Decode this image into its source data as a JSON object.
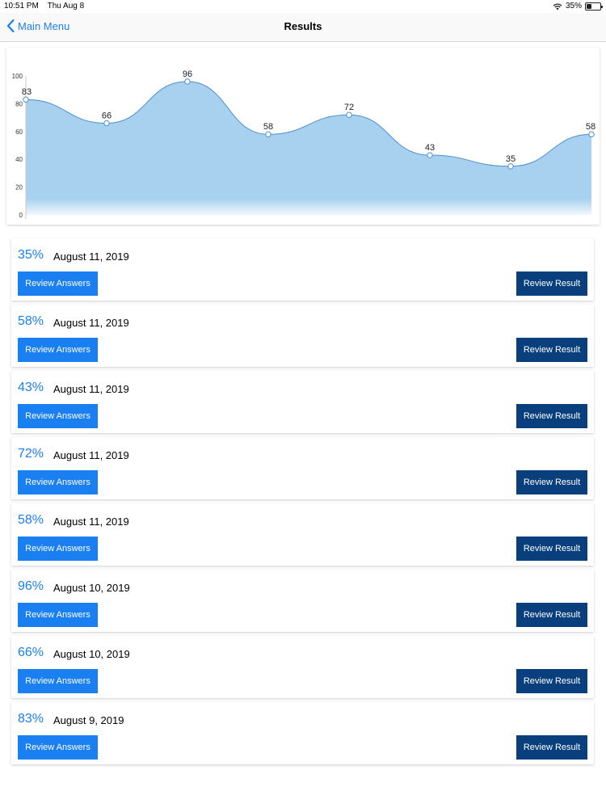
{
  "status": {
    "time": "10:51 PM",
    "date": "Thu Aug 8",
    "battery": "35%",
    "battery_level": 0.35
  },
  "nav": {
    "back_label": "Main Menu",
    "title": "Results"
  },
  "chart_data": {
    "type": "area",
    "title": "",
    "xlabel": "",
    "ylabel": "",
    "ylim": [
      0,
      100
    ],
    "yticks": [
      0,
      20,
      40,
      60,
      80,
      100
    ],
    "values": [
      83,
      66,
      96,
      58,
      72,
      43,
      35,
      58
    ],
    "grid": false,
    "smooth": true,
    "fill_color": "#a8d1ef",
    "line_color": "#4a90d0"
  },
  "colors": {
    "accent": "#1a7ff0",
    "dark_button": "#0a3f7e"
  },
  "results": [
    {
      "score": "35%",
      "date": "August 11, 2019",
      "answers_label": "Review Answers",
      "result_label": "Review Result"
    },
    {
      "score": "58%",
      "date": "August 11, 2019",
      "answers_label": "Review Answers",
      "result_label": "Review Result"
    },
    {
      "score": "43%",
      "date": "August 11, 2019",
      "answers_label": "Review Answers",
      "result_label": "Review Result"
    },
    {
      "score": "72%",
      "date": "August 11, 2019",
      "answers_label": "Review Answers",
      "result_label": "Review Result"
    },
    {
      "score": "58%",
      "date": "August 11, 2019",
      "answers_label": "Review Answers",
      "result_label": "Review Result"
    },
    {
      "score": "96%",
      "date": "August 10, 2019",
      "answers_label": "Review Answers",
      "result_label": "Review Result"
    },
    {
      "score": "66%",
      "date": "August 10, 2019",
      "answers_label": "Review Answers",
      "result_label": "Review Result"
    },
    {
      "score": "83%",
      "date": "August 9, 2019",
      "answers_label": "Review Answers",
      "result_label": "Review Result"
    }
  ]
}
